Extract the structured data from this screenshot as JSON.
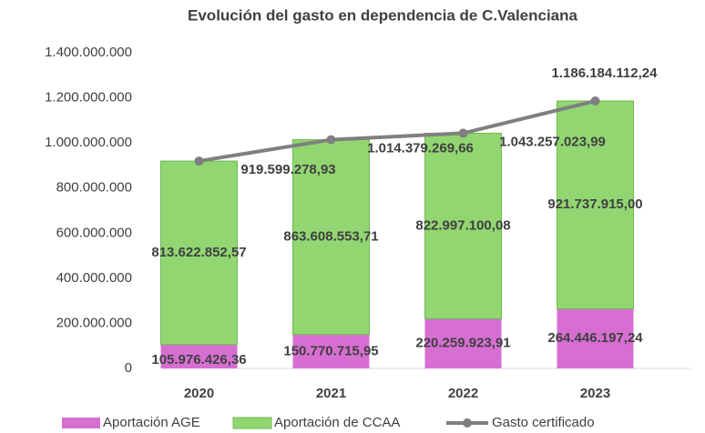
{
  "chart_data": {
    "type": "bar",
    "stacked": true,
    "title": "Evolución del gasto en dependencia de C.Valenciana",
    "categories": [
      "2020",
      "2021",
      "2022",
      "2023"
    ],
    "series": [
      {
        "name": "Aportación AGE",
        "color": "#d76fd3",
        "values": [
          105976426.36,
          150770715.95,
          220259923.91,
          264446197.24
        ],
        "value_labels": [
          "105.976.426,36",
          "150.770.715,95",
          "220.259.923,91",
          "264.446.197,24"
        ]
      },
      {
        "name": "Aportación de CCAA",
        "color": "#92d672",
        "values": [
          813622852.57,
          863608553.71,
          822997100.08,
          921737915.0
        ],
        "value_labels": [
          "813.622.852,57",
          "863.608.553,71",
          "822.997.100,08",
          "921.737.915,00"
        ]
      },
      {
        "name": "Gasto certificado",
        "type": "line",
        "color": "#7f7f7f",
        "values": [
          919599278.93,
          1014379269.66,
          1043257023.99,
          1186184112.24
        ],
        "value_labels": [
          "919.599.278,93",
          "1.014.379.269,66",
          "1.043.257.023,99",
          "1.186.184.112,24"
        ]
      }
    ],
    "ylim": [
      0,
      1400000000
    ],
    "yticks": [
      0,
      {
        "value": 200000000,
        "label": "200.000.000"
      },
      {
        "value": 400000000,
        "label": "400.000.000"
      },
      {
        "value": 600000000,
        "label": "600.000.000"
      },
      {
        "value": 800000000,
        "label": "800.000.000"
      },
      {
        "value": 1000000000,
        "label": "1.000.000.000"
      },
      {
        "value": 1200000000,
        "label": "1.200.000.000"
      },
      {
        "value": 1400000000,
        "label": "1.400.000.000"
      }
    ],
    "grid": false,
    "legend": "bottom"
  }
}
